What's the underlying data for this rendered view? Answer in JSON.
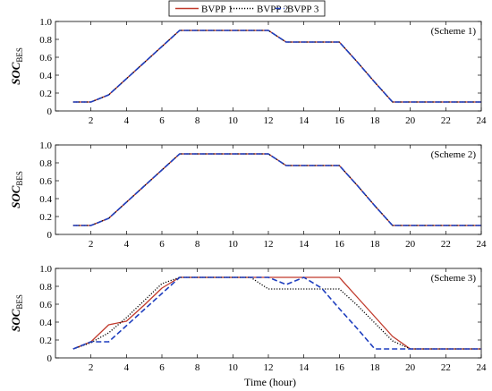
{
  "legend": {
    "items": [
      {
        "label": "BVPP 1",
        "color": "#c0392b",
        "dash": "solid"
      },
      {
        "label": "BVPP 2",
        "color": "#000000",
        "dash": "dotted"
      },
      {
        "label": "BVPP 3",
        "color": "#1f3fbf",
        "dash": "dashed"
      }
    ]
  },
  "xlabel": "Time (hour)",
  "colors": {
    "shade": "#f6dede"
  },
  "chart_data": [
    {
      "type": "line",
      "title": "(Scheme 1)",
      "ylabel": "SOC",
      "ylabel_sub": "BES",
      "xlabel": "",
      "xlim": [
        0,
        24
      ],
      "ylim": [
        0,
        1
      ],
      "xticks": [
        2,
        4,
        6,
        8,
        10,
        12,
        14,
        16,
        18,
        20,
        22,
        24
      ],
      "yticks": [
        "0",
        "0.2",
        "0.4",
        "0.6",
        "0.8",
        "1.0"
      ],
      "x": [
        1,
        2,
        3,
        4,
        5,
        6,
        7,
        8,
        9,
        10,
        11,
        12,
        13,
        14,
        15,
        16,
        17,
        18,
        19,
        20,
        21,
        22,
        23,
        24
      ],
      "series": [
        {
          "name": "BVPP 1",
          "values": [
            0.1,
            0.1,
            0.18,
            0.36,
            0.54,
            0.72,
            0.9,
            0.9,
            0.9,
            0.9,
            0.9,
            0.9,
            0.77,
            0.77,
            0.77,
            0.77,
            0.55,
            0.32,
            0.1,
            0.1,
            0.1,
            0.1,
            0.1,
            0.1
          ]
        },
        {
          "name": "BVPP 2",
          "values": [
            0.1,
            0.1,
            0.18,
            0.36,
            0.54,
            0.72,
            0.9,
            0.9,
            0.9,
            0.9,
            0.9,
            0.9,
            0.77,
            0.77,
            0.77,
            0.77,
            0.55,
            0.32,
            0.1,
            0.1,
            0.1,
            0.1,
            0.1,
            0.1
          ]
        },
        {
          "name": "BVPP 3",
          "values": [
            0.1,
            0.1,
            0.18,
            0.36,
            0.54,
            0.72,
            0.9,
            0.9,
            0.9,
            0.9,
            0.9,
            0.9,
            0.77,
            0.77,
            0.77,
            0.77,
            0.55,
            0.32,
            0.1,
            0.1,
            0.1,
            0.1,
            0.1,
            0.1
          ]
        }
      ]
    },
    {
      "type": "line",
      "title": "(Scheme 2)",
      "ylabel": "SOC",
      "ylabel_sub": "BES",
      "xlabel": "",
      "xlim": [
        0,
        24
      ],
      "ylim": [
        0,
        1
      ],
      "xticks": [
        2,
        4,
        6,
        8,
        10,
        12,
        14,
        16,
        18,
        20,
        22,
        24
      ],
      "yticks": [
        "0",
        "0.2",
        "0.4",
        "0.6",
        "0.8",
        "1.0"
      ],
      "x": [
        1,
        2,
        3,
        4,
        5,
        6,
        7,
        8,
        9,
        10,
        11,
        12,
        13,
        14,
        15,
        16,
        17,
        18,
        19,
        20,
        21,
        22,
        23,
        24
      ],
      "series": [
        {
          "name": "BVPP 1",
          "values": [
            0.1,
            0.1,
            0.18,
            0.36,
            0.54,
            0.72,
            0.9,
            0.9,
            0.9,
            0.9,
            0.9,
            0.9,
            0.77,
            0.77,
            0.77,
            0.77,
            0.55,
            0.32,
            0.1,
            0.1,
            0.1,
            0.1,
            0.1,
            0.1
          ]
        },
        {
          "name": "BVPP 2",
          "values": [
            0.1,
            0.1,
            0.18,
            0.36,
            0.54,
            0.72,
            0.9,
            0.9,
            0.9,
            0.9,
            0.9,
            0.9,
            0.77,
            0.77,
            0.77,
            0.77,
            0.55,
            0.32,
            0.1,
            0.1,
            0.1,
            0.1,
            0.1,
            0.1
          ]
        },
        {
          "name": "BVPP 3",
          "values": [
            0.1,
            0.1,
            0.18,
            0.36,
            0.54,
            0.72,
            0.9,
            0.9,
            0.9,
            0.9,
            0.9,
            0.9,
            0.77,
            0.77,
            0.77,
            0.77,
            0.55,
            0.32,
            0.1,
            0.1,
            0.1,
            0.1,
            0.1,
            0.1
          ]
        }
      ]
    },
    {
      "type": "line",
      "title": "(Scheme 3)",
      "ylabel": "SOC",
      "ylabel_sub": "BES",
      "xlabel": "Time (hour)",
      "xlim": [
        0,
        24
      ],
      "ylim": [
        0,
        1
      ],
      "xticks": [
        2,
        4,
        6,
        8,
        10,
        12,
        14,
        16,
        18,
        20,
        22,
        24
      ],
      "yticks": [
        "0",
        "0.2",
        "0.4",
        "0.6",
        "0.8",
        "1.0"
      ],
      "x": [
        1,
        2,
        3,
        4,
        5,
        6,
        7,
        8,
        9,
        10,
        11,
        12,
        13,
        14,
        15,
        16,
        17,
        18,
        19,
        20,
        21,
        22,
        23,
        24
      ],
      "series": [
        {
          "name": "BVPP 1",
          "values": [
            0.1,
            0.18,
            0.37,
            0.41,
            0.59,
            0.78,
            0.9,
            0.9,
            0.9,
            0.9,
            0.9,
            0.9,
            0.9,
            0.9,
            0.9,
            0.9,
            0.68,
            0.46,
            0.24,
            0.1,
            0.1,
            0.1,
            0.1,
            0.1
          ]
        },
        {
          "name": "BVPP 2",
          "values": [
            0.1,
            0.17,
            0.28,
            0.45,
            0.64,
            0.83,
            0.9,
            0.9,
            0.9,
            0.9,
            0.9,
            0.77,
            0.77,
            0.77,
            0.77,
            0.77,
            0.59,
            0.39,
            0.19,
            0.1,
            0.1,
            0.1,
            0.1,
            0.1
          ]
        },
        {
          "name": "BVPP 3",
          "values": [
            0.1,
            0.18,
            0.18,
            0.36,
            0.54,
            0.72,
            0.9,
            0.9,
            0.9,
            0.9,
            0.9,
            0.9,
            0.82,
            0.9,
            0.78,
            0.55,
            0.33,
            0.1,
            0.1,
            0.1,
            0.1,
            0.1,
            0.1,
            0.1
          ]
        }
      ]
    }
  ]
}
